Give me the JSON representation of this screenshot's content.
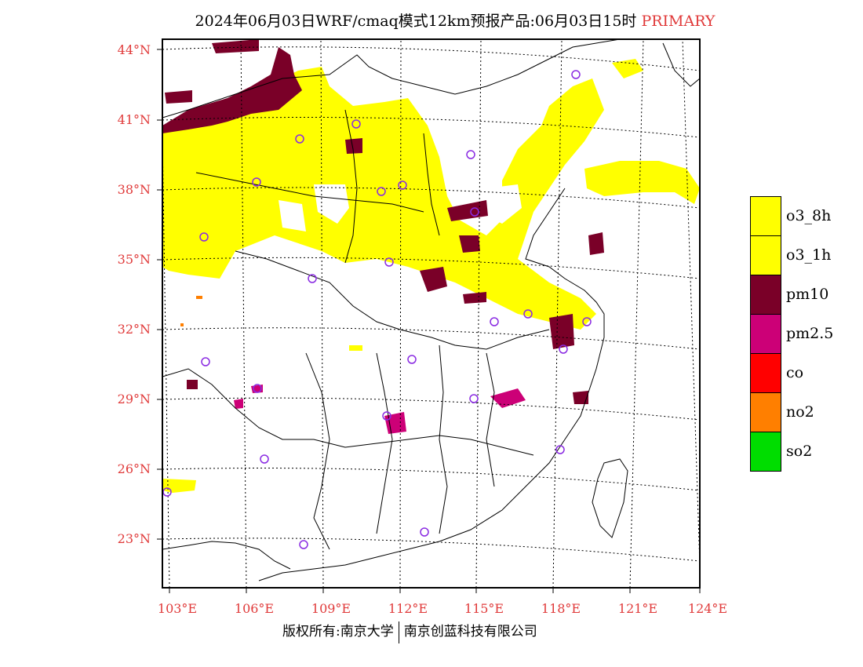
{
  "title": {
    "main": "2024年06月03日WRF/cmaq模式12km预报产品:06月03日15时",
    "tag": "PRIMARY"
  },
  "lat_labels": [
    "44°N",
    "41°N",
    "38°N",
    "35°N",
    "32°N",
    "29°N",
    "26°N",
    "23°N"
  ],
  "lon_labels": [
    "103°E",
    "106°E",
    "109°E",
    "112°E",
    "115°E",
    "118°E",
    "121°E",
    "124°E"
  ],
  "legend": [
    {
      "label": "o3_8h",
      "color": "#ffff00"
    },
    {
      "label": "o3_1h",
      "color": "#ffff00"
    },
    {
      "label": "pm10",
      "color": "#7a0028"
    },
    {
      "label": "pm2.5",
      "color": "#cc0077"
    },
    {
      "label": "co",
      "color": "#ff0000"
    },
    {
      "label": "no2",
      "color": "#ff7f00"
    },
    {
      "label": "so2",
      "color": "#00dd00"
    }
  ],
  "footer": {
    "left": "版权所有:南京大学",
    "right": "南京创蓝科技有限公司"
  },
  "colors": {
    "grid": "#000000",
    "axis_labels": "#e03a3a",
    "station_marker": "#8a2be2"
  }
}
